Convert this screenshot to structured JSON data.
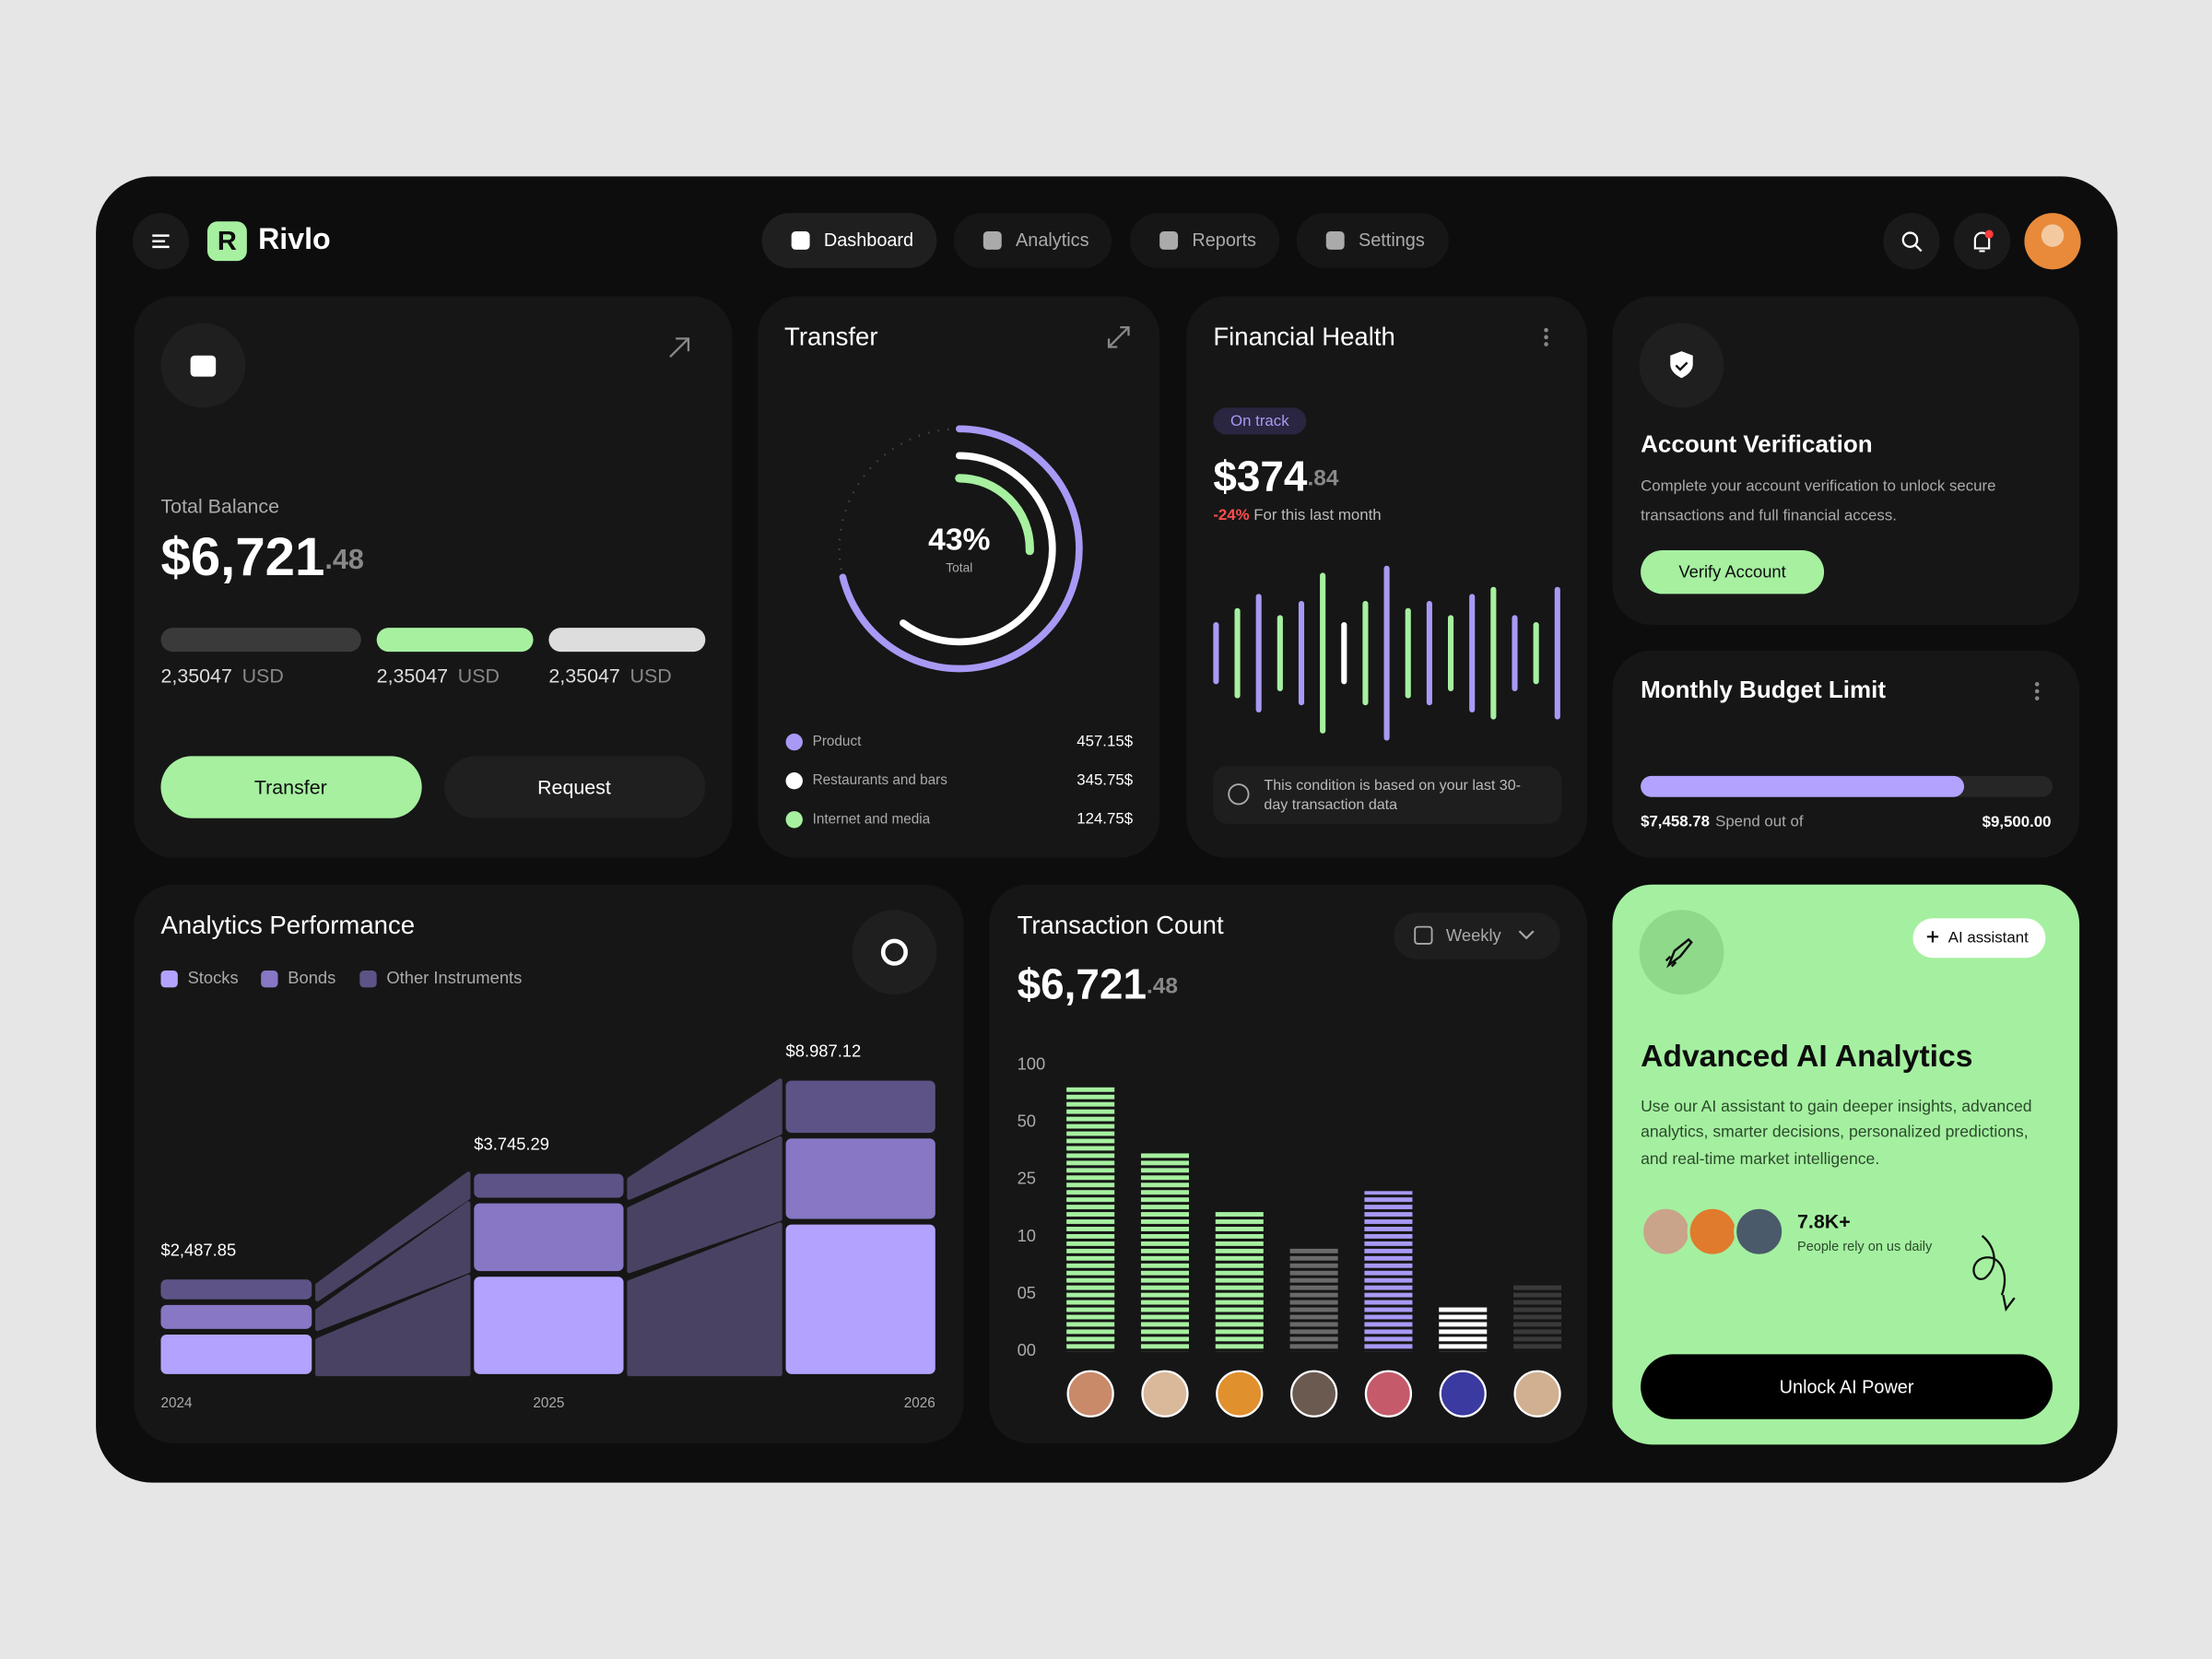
{
  "nav": {
    "brand": "Rivlo",
    "tabs": [
      "Dashboard",
      "Analytics",
      "Reports",
      "Settings"
    ]
  },
  "balance": {
    "label": "Total Balance",
    "amount": "$6,721",
    "cents": ".48",
    "accounts": [
      {
        "amount": "2,35047",
        "unit": "USD"
      },
      {
        "amount": "2,35047",
        "unit": "USD"
      },
      {
        "amount": "2,35047",
        "unit": "USD"
      }
    ],
    "actions": [
      "Transfer",
      "Request"
    ]
  },
  "transfer": {
    "title": "Transfer",
    "percent": "43%",
    "percent_caption": "Total",
    "items": [
      {
        "name": "Product",
        "value": "457.15$",
        "color": "#a899f5"
      },
      {
        "name": "Restaurants and bars",
        "value": "345.75$",
        "color": "#ffffff"
      },
      {
        "name": "Internet and media",
        "value": "124.75$",
        "color": "#a6f0a0"
      }
    ]
  },
  "financial_health": {
    "title": "Financial Health",
    "status": "On track",
    "amount": "$374",
    "cents": ".84",
    "change": "-24%",
    "change_caption": "For this last month",
    "note": [
      "This condition is based on your last 30-",
      "day transaction data"
    ],
    "wave": {
      "values": [
        40,
        60,
        80,
        50,
        70,
        110,
        40,
        70,
        120,
        60,
        70,
        50,
        80,
        90,
        50,
        40,
        90
      ],
      "colors": [
        "#a899f5",
        "#a6f0a0",
        "#a899f5",
        "#a6f0a0",
        "#a899f5",
        "#a6f0a0",
        "#ffffff",
        "#a6f0a0",
        "#a899f5",
        "#a6f0a0",
        "#a899f5",
        "#a6f0a0",
        "#a899f5",
        "#a6f0a0",
        "#a899f5",
        "#a6f0a0",
        "#a899f5"
      ]
    }
  },
  "verification": {
    "title": "Account Verification",
    "description": [
      "Complete your account verification to unlock secure",
      "transactions and full financial access."
    ],
    "action": "Verify Account"
  },
  "budget": {
    "title": "Monthly Budget Limit",
    "spent": {
      "value": 7458.78,
      "label": "$7,458.78"
    },
    "spent_caption": "Spend out of",
    "limit": {
      "value": 9500,
      "label": "$9,500.00"
    }
  },
  "chart_data": [
    {
      "type": "stacked-flow",
      "title": "Analytics Performance",
      "categories": [
        "2024",
        "2025",
        "2026"
      ],
      "series": [
        {
          "name": "Stocks",
          "color": "#b3a3ff",
          "values": [
            28,
            69,
            106
          ]
        },
        {
          "name": "Bonds",
          "color": "#8777c4",
          "values": [
            17,
            48,
            57
          ]
        },
        {
          "name": "Other Instruments",
          "color": "#5e5387",
          "values": [
            14,
            17,
            37
          ]
        }
      ],
      "annotations": [
        "$2,487.85",
        "$3.745.29",
        "$8.987.12"
      ]
    },
    {
      "type": "bar",
      "title": "Transaction Count",
      "amount": "$6,721",
      "cents": ".48",
      "period": "Weekly",
      "values": [
        82,
        37,
        17,
        9,
        22,
        4,
        6
      ],
      "colors": [
        "#a6f0a0",
        "#a6f0a0",
        "#a6f0a0",
        "#6a6a6a",
        "#a899f5",
        "#ffffff",
        "#3a3a3a"
      ],
      "ylim": [
        0,
        100
      ],
      "yticks": [
        100,
        50,
        25,
        10,
        {
          "value": 5,
          "label": "05"
        },
        {
          "value": 0,
          "label": "00"
        }
      ]
    }
  ],
  "ai": {
    "badge": "AI assistant",
    "title": "Advanced AI Analytics",
    "description": [
      "Use our AI assistant to gain deeper insights, advanced",
      "analytics, smarter decisions, personalized predictions,",
      "and real-time market intelligence."
    ],
    "count": "7.8K+",
    "count_caption": "People rely on us daily",
    "action": "Unlock AI Power"
  }
}
